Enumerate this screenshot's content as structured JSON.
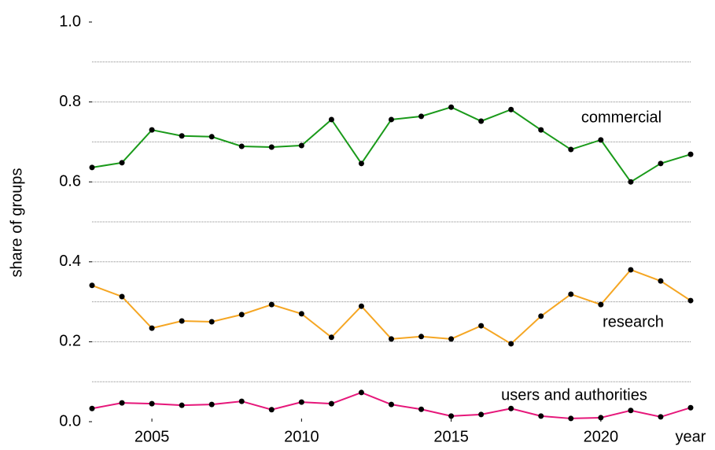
{
  "chart_data": {
    "type": "line",
    "x": [
      2003,
      2004,
      2005,
      2006,
      2007,
      2008,
      2009,
      2010,
      2011,
      2012,
      2013,
      2014,
      2015,
      2016,
      2017,
      2018,
      2019,
      2020,
      2021,
      2022,
      2023
    ],
    "series": [
      {
        "name": "commercial",
        "color": "#1a9a1a",
        "values": [
          0.636,
          0.648,
          0.73,
          0.715,
          0.713,
          0.689,
          0.687,
          0.691,
          0.756,
          0.646,
          0.756,
          0.764,
          0.787,
          0.752,
          0.781,
          0.73,
          0.681,
          0.705,
          0.6,
          0.646,
          0.669
        ]
      },
      {
        "name": "research",
        "color": "#f5a623",
        "values": [
          0.341,
          0.313,
          0.234,
          0.252,
          0.25,
          0.268,
          0.293,
          0.27,
          0.211,
          0.289,
          0.207,
          0.213,
          0.207,
          0.24,
          0.195,
          0.264,
          0.319,
          0.293,
          0.38,
          0.352,
          0.303
        ]
      },
      {
        "name": "users and authorities",
        "color": "#e6177a",
        "values": [
          0.033,
          0.047,
          0.045,
          0.041,
          0.043,
          0.051,
          0.03,
          0.049,
          0.045,
          0.073,
          0.043,
          0.031,
          0.014,
          0.018,
          0.033,
          0.014,
          0.008,
          0.01,
          0.028,
          0.012,
          0.035
        ]
      }
    ],
    "xlabel": "year",
    "ylabel": "share of groups",
    "xlim": [
      2003,
      2023
    ],
    "xticks": [
      2005,
      2010,
      2015,
      2020
    ],
    "ylim": [
      0,
      1
    ],
    "yticks": [
      {
        "value": 0,
        "label": "0.0"
      },
      0.2,
      0.4,
      0.6,
      0.8,
      {
        "value": 1,
        "label": "1.0"
      }
    ],
    "ygrid": [
      0.1,
      0.2,
      0.3,
      0.4,
      0.5,
      0.6,
      0.7,
      0.8,
      0.9
    ],
    "marker_color": "#000000"
  }
}
